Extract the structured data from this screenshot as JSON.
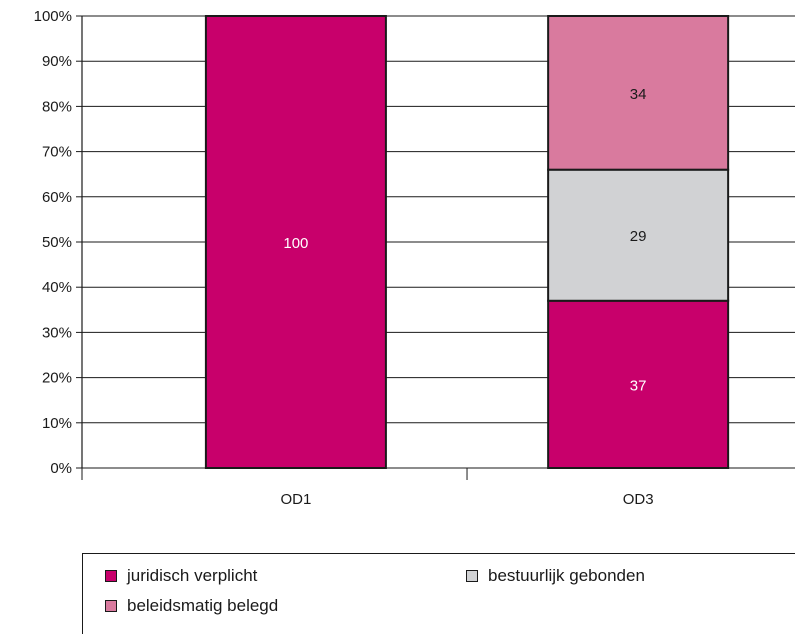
{
  "chart_data": {
    "type": "bar",
    "stacked": true,
    "categories": [
      "OD1",
      "OD3"
    ],
    "series": [
      {
        "name": "juridisch verplicht",
        "values": [
          100,
          37
        ],
        "color": "#c8006b",
        "label_color": "#ffffff"
      },
      {
        "name": "bestuurlijk gebonden",
        "values": [
          0,
          29
        ],
        "color": "#d1d2d4",
        "label_color": "#1a1a1a"
      },
      {
        "name": "beleidsmatig belegd",
        "values": [
          0,
          34
        ],
        "color": "#d97a9e",
        "label_color": "#1a1a1a"
      }
    ],
    "ylim": [
      0,
      100
    ],
    "yticks": [
      "0%",
      "10%",
      "20%",
      "30%",
      "40%",
      "50%",
      "60%",
      "70%",
      "80%",
      "90%",
      "100%"
    ],
    "grid": true,
    "title": "",
    "xlabel": "",
    "ylabel": "",
    "legend_position": "bottom"
  },
  "legend": {
    "items": [
      {
        "label": "juridisch verplicht",
        "color": "#c8006b"
      },
      {
        "label": "bestuurlijk gebonden",
        "color": "#d1d2d4"
      },
      {
        "label": "beleidsmatig belegd",
        "color": "#d97a9e"
      }
    ]
  }
}
